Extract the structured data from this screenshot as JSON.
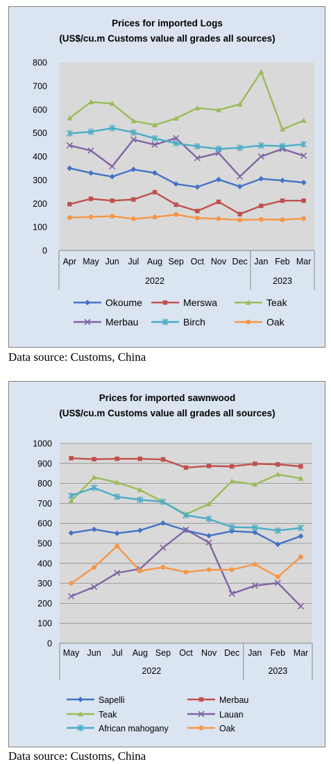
{
  "chart_data": [
    {
      "type": "line",
      "title": "Prices for imported Logs",
      "subtitle": "(US$/cu.m Customs value all grades all sources)",
      "categories": [
        "Apr",
        "May",
        "Jun",
        "Jul",
        "Aug",
        "Sep",
        "Oct",
        "Nov",
        "Dec",
        "Jan",
        "Feb",
        "Mar"
      ],
      "year_groups": [
        {
          "label": "2022",
          "count": 9
        },
        {
          "label": "2023",
          "count": 3
        }
      ],
      "ylim": [
        0,
        800
      ],
      "yticks": [
        "0",
        "100",
        "200",
        "300",
        "400",
        "500",
        "600",
        "700",
        "800"
      ],
      "grid": false,
      "legend_position": "bottom",
      "series": [
        {
          "name": "Okoume",
          "color": "#4472c4",
          "marker": "diamond",
          "values": [
            350,
            330,
            314,
            345,
            330,
            283,
            270,
            302,
            272,
            305,
            298,
            289
          ]
        },
        {
          "name": "Merswa",
          "color": "#c0504d",
          "marker": "square",
          "values": [
            197,
            220,
            212,
            217,
            248,
            195,
            168,
            207,
            155,
            190,
            212,
            212
          ]
        },
        {
          "name": "Teak",
          "color": "#9bbb59",
          "marker": "triangle",
          "values": [
            563,
            632,
            625,
            551,
            534,
            562,
            606,
            598,
            622,
            760,
            516,
            553
          ]
        },
        {
          "name": "Merbau",
          "color": "#8064a2",
          "marker": "x",
          "values": [
            447,
            425,
            358,
            472,
            450,
            478,
            393,
            415,
            315,
            400,
            432,
            403
          ]
        },
        {
          "name": "Birch",
          "color": "#4bacc6",
          "marker": "star",
          "values": [
            498,
            505,
            521,
            502,
            477,
            456,
            443,
            432,
            437,
            447,
            444,
            452
          ]
        },
        {
          "name": "Oak",
          "color": "#f79646",
          "marker": "circle",
          "values": [
            140,
            143,
            146,
            135,
            142,
            153,
            138,
            135,
            130,
            132,
            131,
            136
          ]
        }
      ]
    },
    {
      "type": "line",
      "title": "Prices for imported sawnwood",
      "subtitle": "(US$/cu.m Customs value all grades all sources)",
      "categories": [
        "May",
        "Jun",
        "Jul",
        "Aug",
        "Sep",
        "Oct",
        "Nov",
        "Dec",
        "Jan",
        "Feb",
        "Mar"
      ],
      "year_groups": [
        {
          "label": "2022",
          "count": 8
        },
        {
          "label": "2023",
          "count": 3
        }
      ],
      "ylim": [
        0,
        1000
      ],
      "yticks": [
        "0",
        "100",
        "200",
        "300",
        "400",
        "500",
        "600",
        "700",
        "800",
        "900",
        "1000"
      ],
      "grid": true,
      "legend_position": "bottom",
      "series": [
        {
          "name": "Sapelli",
          "color": "#4472c4",
          "marker": "diamond",
          "values": [
            552,
            570,
            550,
            565,
            601,
            565,
            538,
            561,
            555,
            495,
            536
          ]
        },
        {
          "name": "Merbau",
          "color": "#c0504d",
          "marker": "square",
          "values": [
            926,
            921,
            923,
            923,
            920,
            879,
            887,
            885,
            898,
            895,
            885
          ]
        },
        {
          "name": "Teak",
          "color": "#9bbb59",
          "marker": "triangle",
          "values": [
            712,
            830,
            805,
            767,
            708,
            645,
            697,
            811,
            795,
            845,
            825
          ]
        },
        {
          "name": "Lauan",
          "color": "#8064a2",
          "marker": "x",
          "values": [
            235,
            282,
            352,
            372,
            478,
            568,
            504,
            248,
            288,
            302,
            185
          ]
        },
        {
          "name": "African mahogany",
          "color": "#4bacc6",
          "marker": "star",
          "values": [
            738,
            778,
            733,
            718,
            708,
            641,
            622,
            581,
            579,
            564,
            577
          ]
        },
        {
          "name": "Oak",
          "color": "#f79646",
          "marker": "circle",
          "values": [
            300,
            380,
            486,
            362,
            380,
            356,
            368,
            368,
            395,
            332,
            432
          ]
        }
      ]
    }
  ],
  "sources": [
    "Data source: Customs, China",
    "Data source: Customs, China"
  ]
}
